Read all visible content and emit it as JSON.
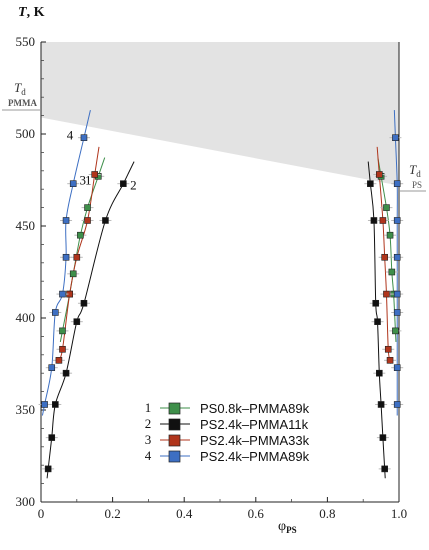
{
  "chart_data": {
    "type": "scatter",
    "title": "",
    "xlabel": "φ",
    "xlabel_sub": "PS",
    "ylabel": "T",
    "ylabel_unit": ", K",
    "xlim": [
      0,
      1.0
    ],
    "ylim": [
      300,
      550
    ],
    "xticks": [
      0,
      0.2,
      0.4,
      0.6,
      0.8,
      1.0
    ],
    "xtick_labels": [
      "0",
      "0.2",
      "0.4",
      "0.6",
      "0.8",
      "1.0"
    ],
    "yticks": [
      300,
      350,
      400,
      450,
      500,
      550
    ],
    "ytick_labels": [
      "300",
      "350",
      "400",
      "450",
      "500",
      "550"
    ],
    "grid": false,
    "legend_position": "bottom-center",
    "annotations": {
      "td_pmma_main": "T",
      "td_pmma_sub": "d",
      "td_pmma_label": "PMMA",
      "td_ps_main": "T",
      "td_ps_sub": "d",
      "td_ps_label": "PS"
    },
    "decomposition_region": {
      "color": "#e3e3e3",
      "left_y": [
        509,
        550
      ],
      "right_y": [
        472,
        550
      ]
    },
    "series": [
      {
        "number": "1",
        "name": "PS0.8k–PMMA89k",
        "color": "#3e8f4a",
        "left": [
          [
            0.06,
            393
          ],
          [
            0.08,
            413
          ],
          [
            0.09,
            424
          ],
          [
            0.11,
            445
          ],
          [
            0.13,
            460
          ],
          [
            0.16,
            477
          ]
        ],
        "right": [
          [
            0.99,
            393
          ],
          [
            0.985,
            413
          ],
          [
            0.98,
            425
          ],
          [
            0.975,
            445
          ],
          [
            0.965,
            460
          ],
          [
            0.95,
            477
          ]
        ]
      },
      {
        "number": "2",
        "name": "PS2.4k–PMMA11k",
        "color": "#111111",
        "left": [
          [
            0.02,
            318
          ],
          [
            0.03,
            335
          ],
          [
            0.04,
            353
          ],
          [
            0.07,
            370
          ],
          [
            0.1,
            398
          ],
          [
            0.12,
            408
          ],
          [
            0.18,
            453
          ],
          [
            0.23,
            473
          ]
        ],
        "right": [
          [
            0.96,
            318
          ],
          [
            0.955,
            335
          ],
          [
            0.95,
            353
          ],
          [
            0.945,
            370
          ],
          [
            0.94,
            398
          ],
          [
            0.935,
            408
          ],
          [
            0.93,
            453
          ],
          [
            0.92,
            473
          ]
        ]
      },
      {
        "number": "3",
        "name": "PS2.4k–PMMA33k",
        "color": "#b0351c",
        "left": [
          [
            0.05,
            377
          ],
          [
            0.06,
            383
          ],
          [
            0.08,
            413
          ],
          [
            0.1,
            433
          ],
          [
            0.13,
            453
          ],
          [
            0.15,
            478
          ]
        ],
        "right": [
          [
            0.975,
            377
          ],
          [
            0.97,
            383
          ],
          [
            0.965,
            413
          ],
          [
            0.96,
            433
          ],
          [
            0.955,
            453
          ],
          [
            0.945,
            478
          ]
        ]
      },
      {
        "number": "4",
        "name": "PS2.4k–PMMA89k",
        "color": "#3d6fc3",
        "left": [
          [
            0.01,
            353
          ],
          [
            0.03,
            373
          ],
          [
            0.04,
            403
          ],
          [
            0.06,
            413
          ],
          [
            0.07,
            433
          ],
          [
            0.07,
            453
          ],
          [
            0.09,
            473
          ],
          [
            0.12,
            498
          ]
        ],
        "right": [
          [
            0.995,
            353
          ],
          [
            0.995,
            373
          ],
          [
            0.995,
            403
          ],
          [
            0.995,
            413
          ],
          [
            0.995,
            433
          ],
          [
            0.995,
            453
          ],
          [
            0.995,
            473
          ],
          [
            0.99,
            498
          ]
        ]
      }
    ]
  }
}
